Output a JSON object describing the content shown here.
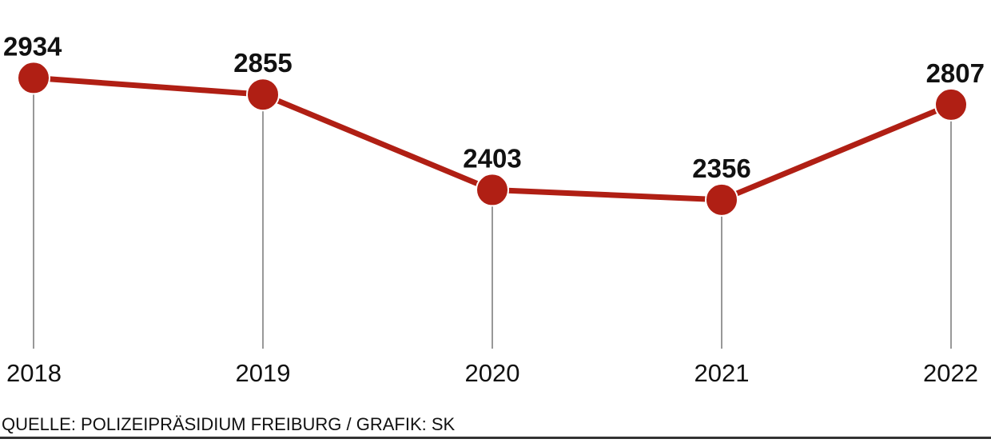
{
  "chart_data": {
    "type": "line",
    "categories": [
      "2018",
      "2019",
      "2020",
      "2021",
      "2022"
    ],
    "values": [
      2934,
      2855,
      2403,
      2356,
      2807
    ],
    "title": "",
    "xlabel": "",
    "ylabel": "",
    "ylim": [
      1650,
      3000
    ],
    "grid": false,
    "show_data_labels": true,
    "drop_lines": true,
    "colors": {
      "line": "#b01f14",
      "marker": "#b01f14",
      "marker_stroke": "#ffffff",
      "drop_line": "#555555",
      "text": "#111111",
      "bottom_rule": "#333333"
    }
  },
  "source": "QUELLE: POLIZEIPRÄSIDIUM FREIBURG / GRAFIK: SK"
}
